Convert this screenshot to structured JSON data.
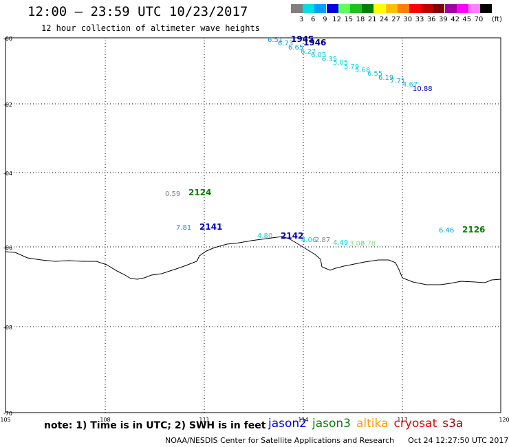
{
  "header": {
    "title": "12:00 – 23:59 UTC 10/23/2017",
    "subtitle": "12 hour collection of altimeter wave heights"
  },
  "legend": {
    "unit": "(ft)",
    "items": [
      {
        "label": "3",
        "color": "#808080"
      },
      {
        "label": "6",
        "color": "#00e0e0"
      },
      {
        "label": "9",
        "color": "#00a0ff"
      },
      {
        "label": "12",
        "color": "#0000e0"
      },
      {
        "label": "15",
        "color": "#60ff60"
      },
      {
        "label": "18",
        "color": "#20c020"
      },
      {
        "label": "21",
        "color": "#008000"
      },
      {
        "label": "24",
        "color": "#ffff00"
      },
      {
        "label": "27",
        "color": "#ffc000"
      },
      {
        "label": "30",
        "color": "#ff8000"
      },
      {
        "label": "33",
        "color": "#ff0000"
      },
      {
        "label": "36",
        "color": "#c00000"
      },
      {
        "label": "39",
        "color": "#800000"
      },
      {
        "label": "42",
        "color": "#a000a0"
      },
      {
        "label": "45",
        "color": "#ff00ff"
      },
      {
        "label": "70",
        "color": "#ff80ff"
      },
      {
        "label": "",
        "color": "#000000"
      }
    ]
  },
  "map": {
    "lat_ticks": [
      "-60",
      "-62",
      "-64",
      "-66",
      "-68",
      "-70"
    ],
    "lon_ticks": [
      "105",
      "108",
      "111",
      "114",
      "117",
      "120"
    ],
    "pass_labels": [
      {
        "text": "1945",
        "color": "#00008b"
      },
      {
        "text": "1946",
        "color": "#00008b"
      },
      {
        "text": "2124",
        "color": "#008000"
      },
      {
        "text": "2141",
        "color": "#0000c0"
      },
      {
        "text": "2142",
        "color": "#0000c0"
      },
      {
        "text": "2126",
        "color": "#008000"
      }
    ],
    "values": [
      {
        "text": "6.51",
        "color": "#00a0e0"
      },
      {
        "text": "6.73",
        "color": "#00a0e0"
      },
      {
        "text": "6.65",
        "color": "#00a0e0"
      },
      {
        "text": "6.27",
        "color": "#00c8e0"
      },
      {
        "text": "6.05",
        "color": "#00c8e0"
      },
      {
        "text": "6.35",
        "color": "#00c8e0"
      },
      {
        "text": "5.05",
        "color": "#00d8e0"
      },
      {
        "text": "5.79",
        "color": "#00d8e0"
      },
      {
        "text": "5.68",
        "color": "#00d8e0"
      },
      {
        "text": "6.55",
        "color": "#00c8e0"
      },
      {
        "text": "6.19",
        "color": "#00b0e0"
      },
      {
        "text": "7.71",
        "color": "#00b0e0"
      },
      {
        "text": "4.67",
        "color": "#00d0e0"
      },
      {
        "text": "10.88",
        "color": "#0000c0"
      },
      {
        "text": "0.59",
        "color": "#808080"
      },
      {
        "text": "7.81",
        "color": "#00a0e0"
      },
      {
        "text": "4.80",
        "color": "#00d8e0"
      },
      {
        "text": "4.06",
        "color": "#00d8e0"
      },
      {
        "text": "2.87",
        "color": "#808080"
      },
      {
        "text": "4.49",
        "color": "#00d8e0"
      },
      {
        "text": "3.06",
        "color": "#80e080"
      },
      {
        "text": "2.78",
        "color": "#80e080"
      },
      {
        "text": "6.46",
        "color": "#00a0e0"
      }
    ]
  },
  "footer": {
    "note": "note: 1) Time is in UTC; 2) SWH is in feet",
    "satellites": [
      {
        "name": "jason2",
        "color": "#0000e0"
      },
      {
        "name": "jason3",
        "color": "#008000"
      },
      {
        "name": "altika",
        "color": "#ff9900"
      },
      {
        "name": "cryosat",
        "color": "#e00000"
      },
      {
        "name": "s3a",
        "color": "#a00000"
      }
    ],
    "credit": "NOAA/NESDIS Center for Satellite Applications and Research",
    "timestamp": "Oct 24 12:27:50 UTC 2017"
  }
}
